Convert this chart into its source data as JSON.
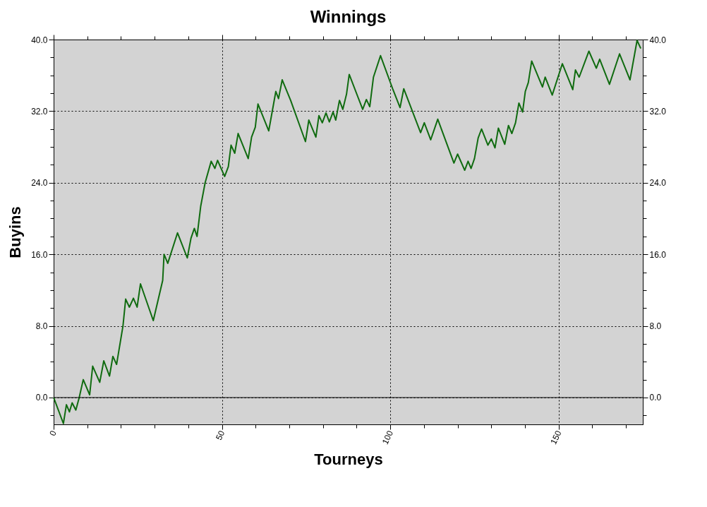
{
  "chart_data": {
    "type": "line",
    "title": "Winnings",
    "xlabel": "Tourneys",
    "ylabel": "Buyins",
    "xlim": [
      0,
      175
    ],
    "ylim": [
      -3,
      40
    ],
    "y2lim": [
      -3,
      40
    ],
    "xticks": [
      0,
      {
        "value": 10,
        "label": null
      },
      {
        "value": 20,
        "label": null
      },
      {
        "value": 30,
        "label": null
      },
      {
        "value": 40,
        "label": null
      },
      50,
      {
        "value": 60,
        "label": null
      },
      {
        "value": 70,
        "label": null
      },
      {
        "value": 80,
        "label": null
      },
      {
        "value": 90,
        "label": null
      },
      100,
      {
        "value": 110,
        "label": null
      },
      {
        "value": 120,
        "label": null
      },
      {
        "value": 130,
        "label": null
      },
      {
        "value": 140,
        "label": null
      },
      150,
      {
        "value": 160,
        "label": null
      },
      {
        "value": 170,
        "label": null
      }
    ],
    "yticks": [
      {
        "value": -2,
        "label": null
      },
      {
        "value": 0,
        "label": "0.0"
      },
      {
        "value": 2,
        "label": null
      },
      {
        "value": 4,
        "label": null
      },
      {
        "value": 6,
        "label": null
      },
      {
        "value": 8,
        "label": "8.0"
      },
      {
        "value": 10,
        "label": null
      },
      {
        "value": 12,
        "label": null
      },
      {
        "value": 14,
        "label": null
      },
      {
        "value": 16,
        "label": "16.0"
      },
      {
        "value": 18,
        "label": null
      },
      {
        "value": 20,
        "label": null
      },
      {
        "value": 22,
        "label": null
      },
      {
        "value": 24,
        "label": "24.0"
      },
      {
        "value": 26,
        "label": null
      },
      {
        "value": 28,
        "label": null
      },
      {
        "value": 30,
        "label": null
      },
      {
        "value": 32,
        "label": "32.0"
      },
      {
        "value": 34,
        "label": null
      },
      {
        "value": 36,
        "label": null
      },
      {
        "value": 38,
        "label": null
      },
      {
        "value": 40,
        "label": "40.0"
      }
    ],
    "y2ticks": [
      {
        "value": -2,
        "label": null
      },
      {
        "value": 0,
        "label": "0.0"
      },
      {
        "value": 2,
        "label": null
      },
      {
        "value": 4,
        "label": null
      },
      {
        "value": 6,
        "label": null
      },
      {
        "value": 8,
        "label": "8.0"
      },
      {
        "value": 10,
        "label": null
      },
      {
        "value": 12,
        "label": null
      },
      {
        "value": 14,
        "label": null
      },
      {
        "value": 16,
        "label": "16.0"
      },
      {
        "value": 18,
        "label": null
      },
      {
        "value": 20,
        "label": null
      },
      {
        "value": 22,
        "label": null
      },
      {
        "value": 24,
        "label": "24.0"
      },
      {
        "value": 26,
        "label": null
      },
      {
        "value": 28,
        "label": null
      },
      {
        "value": 30,
        "label": null
      },
      {
        "value": 32,
        "label": "32.0"
      },
      {
        "value": 34,
        "label": null
      },
      {
        "value": 36,
        "label": null
      },
      {
        "value": 38,
        "label": null
      },
      {
        "value": 40,
        "label": "40.0"
      }
    ],
    "grid": true,
    "line_style": "solid",
    "marker": "none",
    "ref_lines": [
      {
        "axis": "y",
        "value": 0,
        "color": "#000000",
        "line_style": "solid"
      }
    ],
    "series": [
      {
        "color": "#106b10",
        "x": [
          0,
          2.9,
          3.8,
          4.7,
          5.5,
          6.6,
          7.6,
          8.8,
          10.7,
          11.6,
          13.7,
          14.9,
          16.6,
          17.6,
          18.7,
          20.6,
          21.4,
          22.5,
          23.7,
          24.8,
          25.8,
          29.6,
          32.4,
          32.8,
          33.9,
          36.8,
          39.7,
          40.8,
          41.8,
          42.6,
          43.7,
          45.0,
          46.8,
          47.9,
          48.7,
          50.8,
          51.9,
          52.7,
          53.8,
          54.8,
          57.8,
          58.8,
          59.9,
          60.7,
          63.9,
          66.0,
          66.8,
          67.9,
          70.4,
          74.8,
          75.8,
          77.9,
          78.8,
          79.8,
          80.9,
          81.9,
          83.0,
          83.8,
          84.9,
          85.9,
          87.0,
          87.8,
          91.8,
          92.9,
          93.9,
          95.0,
          97.1,
          100.8,
          102.9,
          104.0,
          109.0,
          110.1,
          112.0,
          114.1,
          118.9,
          120.0,
          122.1,
          123.1,
          124.0,
          125.0,
          126.1,
          127.1,
          129.0,
          130.0,
          131.1,
          132.1,
          134.0,
          135.1,
          136.1,
          137.2,
          138.2,
          139.3,
          140.1,
          141.0,
          142.0,
          145.2,
          146.0,
          148.1,
          151.1,
          154.2,
          155.0,
          156.1,
          157.8,
          159.0,
          161.2,
          162.2,
          165.1,
          168.1,
          171.2,
          173.3,
          174.4
        ],
        "values": [
          0,
          -2.9,
          -0.8,
          -1.6,
          -0.6,
          -1.4,
          0,
          2.0,
          0.3,
          3.5,
          1.7,
          4.1,
          2.4,
          4.6,
          3.7,
          8.0,
          11.0,
          10.1,
          11.1,
          10.1,
          12.7,
          8.6,
          13.1,
          16.0,
          15.0,
          18.4,
          15.6,
          17.8,
          18.9,
          18.0,
          21.4,
          24.0,
          26.4,
          25.6,
          26.5,
          24.7,
          25.8,
          28.2,
          27.3,
          29.5,
          26.7,
          29.1,
          30.2,
          32.8,
          29.8,
          34.2,
          33.4,
          35.5,
          33.2,
          28.6,
          31.0,
          29.1,
          31.5,
          30.7,
          31.8,
          30.8,
          31.9,
          31.0,
          33.2,
          32.2,
          33.9,
          36.1,
          32.2,
          33.3,
          32.5,
          35.8,
          38.2,
          34.4,
          32.4,
          34.5,
          29.6,
          30.7,
          28.8,
          31.1,
          26.2,
          27.2,
          25.4,
          26.4,
          25.6,
          26.7,
          29.0,
          30.0,
          28.2,
          28.9,
          27.9,
          30.1,
          28.3,
          30.4,
          29.5,
          30.7,
          32.9,
          31.9,
          34.2,
          35.2,
          37.6,
          34.7,
          35.8,
          33.8,
          37.3,
          34.4,
          36.6,
          35.8,
          37.5,
          38.7,
          36.8,
          37.8,
          35.0,
          38.4,
          35.5,
          39.9,
          39.0
        ]
      }
    ]
  }
}
